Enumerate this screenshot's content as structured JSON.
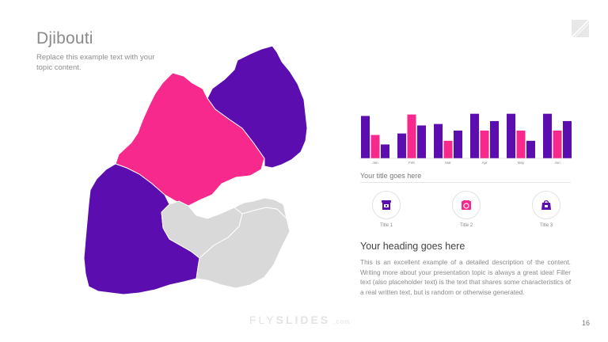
{
  "slide": {
    "title": "Djibouti",
    "subtitle": "Replace this example text with your topic content.",
    "page_number": "16"
  },
  "colors": {
    "purple": "#5b0daf",
    "pink": "#f7298c",
    "gray_region": "#d9d9d9",
    "gray_border": "#ffffff"
  },
  "map": {
    "regions": [
      {
        "name": "obock",
        "color": "purple"
      },
      {
        "name": "tadjourah",
        "color": "pink"
      },
      {
        "name": "dikhil",
        "color": "purple"
      },
      {
        "name": "arta",
        "color": "gray_region"
      },
      {
        "name": "ali-sabieh",
        "color": "gray_region"
      },
      {
        "name": "djibouti-city",
        "color": "gray_region"
      }
    ]
  },
  "chart_data": {
    "type": "bar",
    "categories": [
      "Jan",
      "Feb",
      "Mar",
      "Apr",
      "May",
      "Jun"
    ],
    "series": [
      {
        "color": "#5b0daf",
        "values": [
          58,
          34,
          47,
          61,
          61,
          61
        ]
      },
      {
        "color": "#f7298c",
        "values": [
          32,
          60,
          24,
          38,
          38,
          38
        ]
      },
      {
        "color": "#5b0daf",
        "values": [
          19,
          45,
          38,
          51,
          24,
          51
        ]
      }
    ],
    "ylim": [
      0,
      65
    ],
    "grid": false,
    "title": ""
  },
  "chart_caption": "Your title goes here",
  "icons": [
    {
      "icon": "storefront-icon",
      "label": "Title 1"
    },
    {
      "icon": "gift-box-icon",
      "label": "Title 2"
    },
    {
      "icon": "shopping-bag-icon",
      "label": "Title 3"
    }
  ],
  "content": {
    "heading": "Your heading goes here",
    "body": "This is an excellent example of a detailed description of the content. Writing more about your presentation topic is always a great idea! Filler text (also placeholder text) is the text that shares some characteristics of a real written text, but is random or otherwise generated."
  },
  "brand": {
    "part1": "FLY",
    "part2": "SLIDES",
    "part3": ".com"
  }
}
